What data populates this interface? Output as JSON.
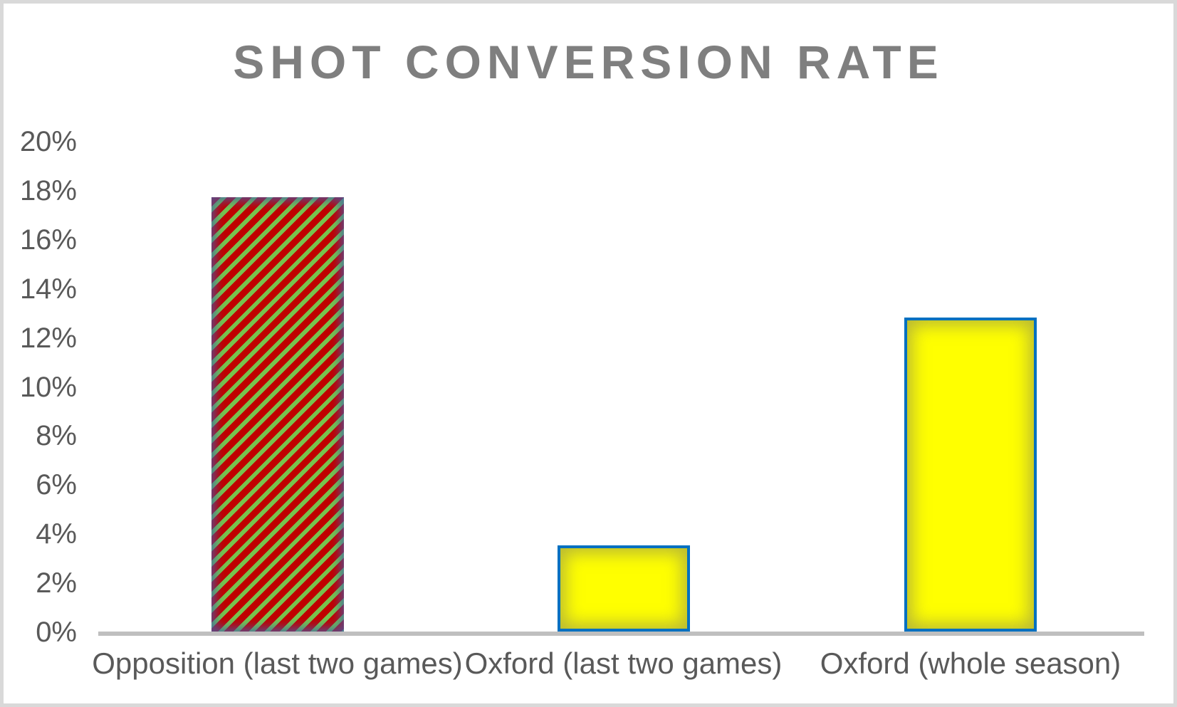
{
  "chart_data": {
    "type": "bar",
    "title": "SHOT CONVERSION RATE",
    "categories": [
      "Opposition (last two games)",
      "Oxford (last two games)",
      "Oxford (whole season)"
    ],
    "values": [
      17.7,
      3.5,
      12.8
    ],
    "value_unit": "%",
    "xlabel": "",
    "ylabel": "",
    "ylim": [
      0,
      20
    ],
    "ytick_step": 2,
    "ytick_labels": [
      "0%",
      "2%",
      "4%",
      "6%",
      "8%",
      "10%",
      "12%",
      "14%",
      "16%",
      "18%",
      "20%"
    ],
    "grid": false,
    "legend": false,
    "colors": {
      "background": "#ffffff",
      "frame_border": "#d9d9d9",
      "title": "#7f7f7f",
      "axis_labels": "#595959",
      "axis_line": "#bfbfbf",
      "stripe_red": "#c00000",
      "stripe_green": "#77c34d",
      "stripe_edge_tint": "#3f5fae",
      "bar_yellow": "#ffff00",
      "bar_border_blue": "#0070c0"
    },
    "bar_styles": [
      {
        "category": "Opposition (last two games)",
        "fill": "diagonal-stripes",
        "pattern": [
          "#c00000",
          "#77c34d"
        ],
        "soft_edge": true
      },
      {
        "category": "Oxford (last two games)",
        "fill": "solid",
        "color": "#ffff00",
        "border": "#0070c0",
        "soft_edge": true
      },
      {
        "category": "Oxford (whole season)",
        "fill": "solid",
        "color": "#ffff00",
        "border": "#0070c0",
        "soft_edge": true
      }
    ]
  }
}
